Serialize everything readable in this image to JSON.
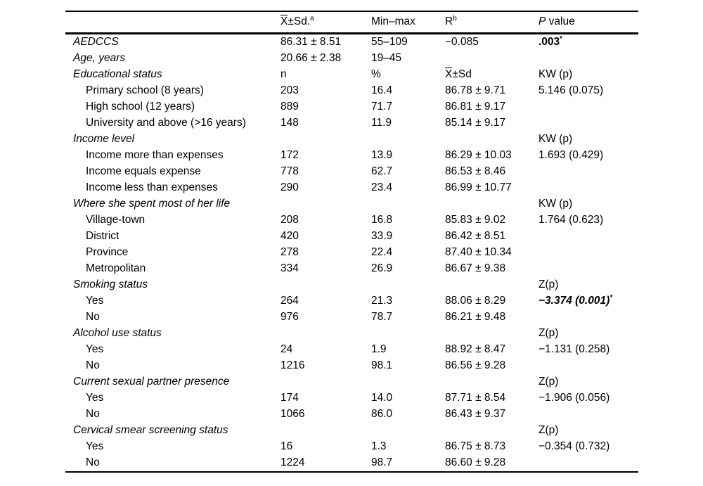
{
  "table": {
    "header": {
      "variable": "",
      "mean_sd": {
        "overline": "X",
        "text": "±Sd.",
        "sup": "a"
      },
      "min_max": "Min–max",
      "r": {
        "text": "R",
        "sup": "b"
      },
      "p": {
        "italic": "P",
        "text": " value"
      }
    },
    "rows": [
      {
        "label": "AEDCCS",
        "style": "cat",
        "c2": "86.31 ± 8.51",
        "c3": "55–109",
        "c4": "−0.085",
        "c5": {
          "text": ".003",
          "sup": "*",
          "cls": "bold"
        }
      },
      {
        "label": "Age, years",
        "style": "cat",
        "c2": "20.66 ± 2.38",
        "c3": "19–45",
        "c4": "",
        "c5": ""
      },
      {
        "label": "Educational status",
        "style": "cat",
        "c2": "n",
        "c3": "%",
        "c4": {
          "overline": "X",
          "text": "±Sd"
        },
        "c5": "KW (p)"
      },
      {
        "label": "Primary school (8 years)",
        "style": "sub",
        "c2": "203",
        "c3": "16.4",
        "c4": "86.78 ± 9.71",
        "c5": "5.146 (0.075)"
      },
      {
        "label": "High school (12 years)",
        "style": "sub",
        "c2": "889",
        "c3": "71.7",
        "c4": "86.81 ± 9.17",
        "c5": ""
      },
      {
        "label": "University and above (>16 years)",
        "style": "sub",
        "c2": "148",
        "c3": "11.9",
        "c4": "85.14 ± 9.17",
        "c5": ""
      },
      {
        "label": "Income level",
        "style": "cat",
        "c2": "",
        "c3": "",
        "c4": "",
        "c5": "KW (p)"
      },
      {
        "label": "Income more than expenses",
        "style": "sub",
        "c2": "172",
        "c3": "13.9",
        "c4": "86.29 ± 10.03",
        "c5": "1.693 (0.429)"
      },
      {
        "label": "Income equals expense",
        "style": "sub",
        "c2": "778",
        "c3": "62.7",
        "c4": "86.53 ± 8.46",
        "c5": ""
      },
      {
        "label": "Income less than expenses",
        "style": "sub",
        "c2": "290",
        "c3": "23.4",
        "c4": "86.99 ± 10.77",
        "c5": ""
      },
      {
        "label": "Where she spent most of her life",
        "style": "cat",
        "c2": "",
        "c3": "",
        "c4": "",
        "c5": "KW (p)"
      },
      {
        "label": "Village-town",
        "style": "sub",
        "c2": "208",
        "c3": "16.8",
        "c4": "85.83 ± 9.02",
        "c5": "1.764 (0.623)"
      },
      {
        "label": "District",
        "style": "sub",
        "c2": "420",
        "c3": "33.9",
        "c4": "86.42 ± 8.51",
        "c5": ""
      },
      {
        "label": "Province",
        "style": "sub",
        "c2": "278",
        "c3": "22.4",
        "c4": "87.40 ± 10.34",
        "c5": ""
      },
      {
        "label": "Metropolitan",
        "style": "sub",
        "c2": "334",
        "c3": "26.9",
        "c4": "86.67 ± 9.38",
        "c5": ""
      },
      {
        "label": "Smoking status",
        "style": "cat",
        "c2": "",
        "c3": "",
        "c4": "",
        "c5": "Z(p)"
      },
      {
        "label": "Yes",
        "style": "sub",
        "c2": "264",
        "c3": "21.3",
        "c4": "88.06 ± 8.29",
        "c5": {
          "text": "−3.374 (0.001)",
          "sup": "*",
          "cls": "bolditalic"
        }
      },
      {
        "label": "No",
        "style": "sub",
        "c2": "976",
        "c3": "78.7",
        "c4": "86.21 ± 9.48",
        "c5": ""
      },
      {
        "label": "Alcohol use status",
        "style": "cat",
        "c2": "",
        "c3": "",
        "c4": "",
        "c5": "Z(p)"
      },
      {
        "label": "Yes",
        "style": "sub",
        "c2": "24",
        "c3": "1.9",
        "c4": "88.92 ± 8.47",
        "c5": "−1.131 (0.258)"
      },
      {
        "label": "No",
        "style": "sub",
        "c2": "1216",
        "c3": "98.1",
        "c4": "86.56 ± 9.28",
        "c5": ""
      },
      {
        "label": "Current sexual partner presence",
        "style": "cat",
        "c2": "",
        "c3": "",
        "c4": "",
        "c5": "Z(p)"
      },
      {
        "label": "Yes",
        "style": "sub",
        "c2": "174",
        "c3": "14.0",
        "c4": "87.71 ± 8.54",
        "c5": "−1.906 (0.056)"
      },
      {
        "label": "No",
        "style": "sub",
        "c2": "1066",
        "c3": "86.0",
        "c4": "86.43 ± 9.37",
        "c5": ""
      },
      {
        "label": "Cervical smear screening status",
        "style": "cat",
        "c2": "",
        "c3": "",
        "c4": "",
        "c5": "Z(p)"
      },
      {
        "label": "Yes",
        "style": "sub",
        "c2": "16",
        "c3": "1.3",
        "c4": "86.75 ± 8.73",
        "c5": "−0.354 (0.732)"
      },
      {
        "label": "No",
        "style": "sub",
        "c2": "1224",
        "c3": "98.7",
        "c4": "86.60 ± 9.28",
        "c5": ""
      }
    ]
  }
}
